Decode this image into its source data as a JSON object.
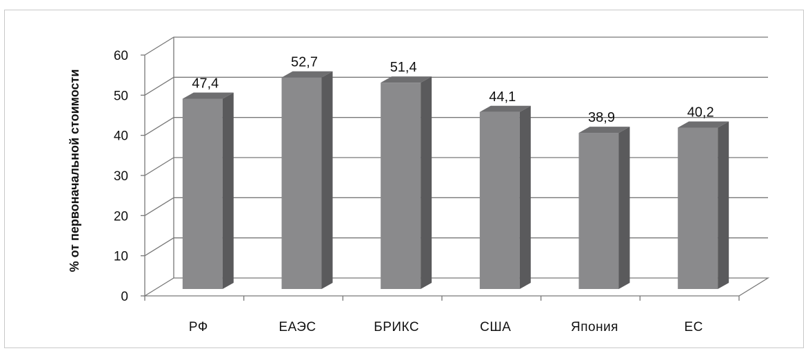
{
  "chart_data": {
    "type": "bar",
    "title": "",
    "xlabel": "",
    "ylabel": "% от первоначальной  стоимости",
    "categories": [
      "РФ",
      "ЕАЭС",
      "БРИКС",
      "США",
      "Япония",
      "ЕС"
    ],
    "values": [
      47.4,
      52.7,
      51.4,
      44.1,
      38.9,
      40.2
    ],
    "value_labels": [
      "47,4",
      "52,7",
      "51,4",
      "44,1",
      "38,9",
      "40,2"
    ],
    "yticks": [
      0,
      10,
      20,
      30,
      40,
      50,
      60
    ],
    "ylim": [
      0,
      60
    ],
    "grid": true,
    "legend": "none",
    "style": "3d-column",
    "colors": {
      "bar_front": "#8a8a8c",
      "bar_side": "#5a5a5c",
      "bar_top": "#6e6e70",
      "grid": "#777777"
    }
  }
}
